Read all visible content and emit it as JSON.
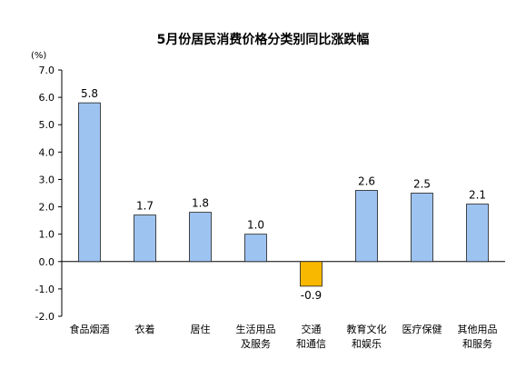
{
  "chart_data": {
    "type": "bar",
    "title": "5月份居民消费价格分类别同比涨跌幅",
    "yunit": "(%)",
    "ylim": [
      -2.0,
      7.0
    ],
    "yticks": [
      "7.0",
      "6.0",
      "5.0",
      "4.0",
      "3.0",
      "2.0",
      "1.0",
      "0.0",
      "-1.0",
      "-2.0"
    ],
    "categories": [
      [
        "食品烟酒"
      ],
      [
        "衣着"
      ],
      [
        "居住"
      ],
      [
        "生活用品",
        "及服务"
      ],
      [
        "交通",
        "和通信"
      ],
      [
        "教育文化",
        "和娱乐"
      ],
      [
        "医疗保健"
      ],
      [
        "其他用品",
        "和服务"
      ]
    ],
    "values": [
      5.8,
      1.7,
      1.8,
      1.0,
      -0.9,
      2.6,
      2.5,
      2.1
    ],
    "value_labels": [
      "5.8",
      "1.7",
      "1.8",
      "1.0",
      "-0.9",
      "2.6",
      "2.5",
      "2.1"
    ],
    "grid": false,
    "colors": {
      "positive": "#9dc3f1",
      "negative": "#f8b800",
      "outline": "#1f1f1f"
    }
  }
}
